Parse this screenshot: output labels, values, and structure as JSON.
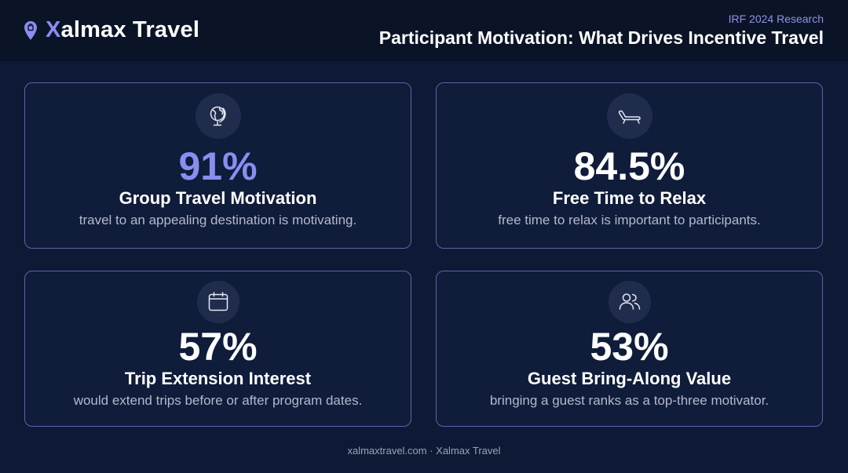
{
  "header": {
    "brand_first_letter": "X",
    "brand_rest": "almax Travel",
    "eyebrow": "IRF 2024 Research",
    "title": "Participant Motivation: What Drives Incentive Travel"
  },
  "colors": {
    "background": "#0e1a35",
    "header_background": "#0b1426",
    "accent": "#8a8df0",
    "card_border": "#5b65a8",
    "muted_text": "#b3b9cc"
  },
  "cards": [
    {
      "icon": "globe-icon",
      "value": "91%",
      "title": "Group Travel Motivation",
      "description": "travel to an appealing destination is motivating."
    },
    {
      "icon": "lounge-chair-icon",
      "value": "84.5%",
      "title": "Free Time to Relax",
      "description": "free time to relax is important to participants."
    },
    {
      "icon": "calendar-icon",
      "value": "57%",
      "title": "Trip Extension Interest",
      "description": "would extend trips before or after program dates."
    },
    {
      "icon": "users-icon",
      "value": "53%",
      "title": "Guest Bring-Along Value",
      "description": "bringing a guest ranks as a top-three motivator."
    }
  ],
  "footer": {
    "text": "xalmaxtravel.com · Xalmax Travel"
  }
}
